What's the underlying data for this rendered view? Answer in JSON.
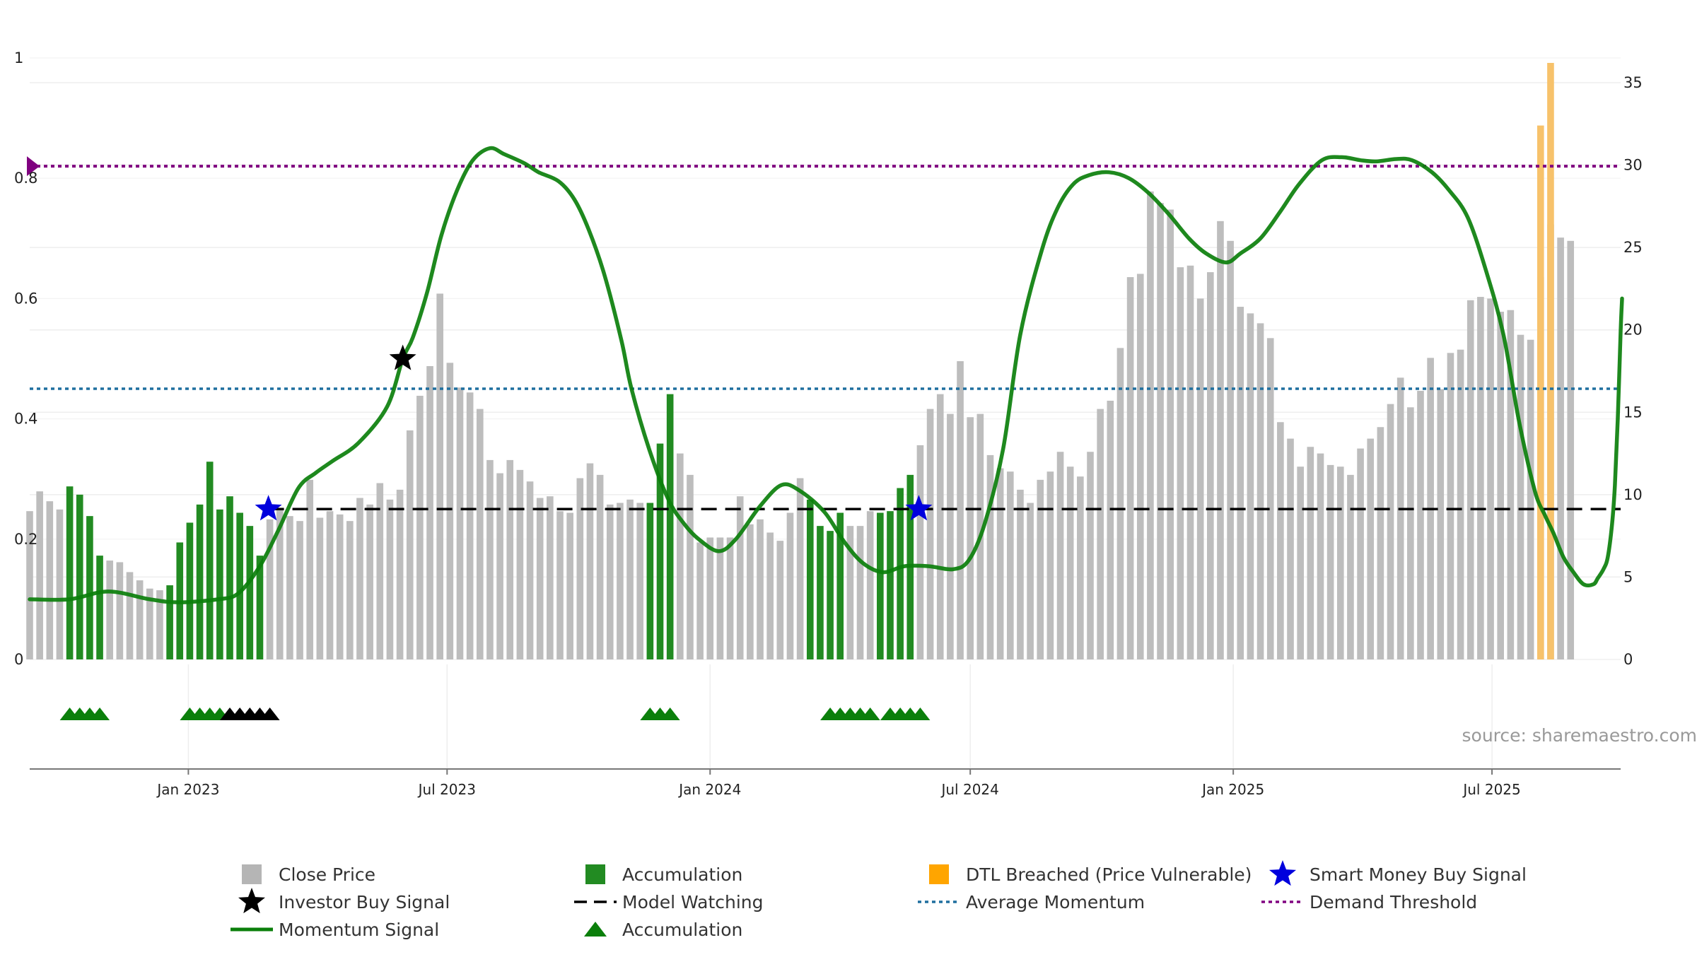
{
  "chart_data": {
    "type": "bar+line",
    "source_label": "source: sharemaestro.com",
    "left_axis": {
      "ylim": [
        0,
        1
      ],
      "ticks": [
        "0",
        "0.2",
        "0.4",
        "0.6",
        "0.8",
        "1"
      ],
      "tick_values": [
        0,
        0.2,
        0.4,
        0.6,
        0.8,
        1.0
      ]
    },
    "right_axis": {
      "ylim": [
        0,
        36.5
      ],
      "ticks": [
        "0",
        "5",
        "10",
        "15",
        "20",
        "25",
        "30",
        "35"
      ],
      "tick_values": [
        0,
        5,
        10,
        15,
        20,
        25,
        30,
        35
      ]
    },
    "x_axis": {
      "start": "2022-09-12",
      "end": "2025-09-29",
      "ticks": [
        {
          "label": "Jan 2023",
          "date": "2023-01-01"
        },
        {
          "label": "Jul 2023",
          "date": "2023-07-01"
        },
        {
          "label": "Jan 2024",
          "date": "2024-01-01"
        },
        {
          "label": "Jul 2024",
          "date": "2024-07-01"
        },
        {
          "label": "Jan 2025",
          "date": "2025-01-01"
        },
        {
          "label": "Jul 2025",
          "date": "2025-07-01"
        }
      ]
    },
    "bars_start": "2022-09-12",
    "bar_interval_days": 7,
    "close_price": [
      9,
      10.2,
      9.6,
      9.1,
      10.5,
      10,
      8.7,
      6.3,
      6,
      5.9,
      5.3,
      4.8,
      4.3,
      4.2,
      4.5,
      7.1,
      8.3,
      9.4,
      12,
      9.1,
      9.9,
      8.9,
      8.1,
      6.3,
      8.5,
      9.1,
      8.7,
      8.4,
      10.9,
      8.6,
      9,
      8.8,
      8.4,
      9.8,
      9.4,
      10.7,
      9.7,
      10.3,
      13.9,
      16,
      17.8,
      22.2,
      18,
      16.5,
      16.2,
      15.2,
      12.1,
      11.3,
      12.1,
      11.5,
      10.8,
      9.8,
      9.9,
      9,
      8.9,
      11,
      11.9,
      11.2,
      9.4,
      9.5,
      9.7,
      9.5,
      9.5,
      13.1,
      16.1,
      12.5,
      11.2,
      7.1,
      7.4,
      7.4,
      7.4,
      9.9,
      8.2,
      8.5,
      7.7,
      7.2,
      8.9,
      11,
      9.7,
      8.1,
      7.8,
      8.9,
      8.1,
      8.1,
      9,
      8.9,
      9,
      10.4,
      11.2,
      13,
      15.2,
      16.1,
      14.9,
      18.1,
      14.7,
      14.9,
      12.4,
      11.6,
      11.4,
      10.3,
      9.5,
      10.9,
      11.4,
      12.6,
      11.7,
      11.1,
      12.6,
      15.2,
      15.7,
      18.9,
      23.2,
      23.4,
      28.4,
      27.7,
      27.3,
      23.8,
      23.9,
      21.9,
      23.5,
      26.6,
      25.4,
      21.4,
      21,
      20.4,
      19.5,
      14.4,
      13.4,
      11.7,
      12.9,
      12.5,
      11.8,
      11.7,
      11.2,
      12.8,
      13.4,
      14.1,
      15.5,
      17.1,
      15.3,
      16.3,
      18.3,
      16.4,
      18.6,
      18.8,
      21.8,
      22,
      21.9,
      21.1,
      21.2,
      19.7,
      19.4,
      23.2,
      26.4,
      25.6,
      25.4
    ],
    "dtl_breached": [
      {
        "index": 151,
        "value": 32.4
      },
      {
        "index": 152,
        "value": 36.2
      }
    ],
    "accumulation_bar_indices": [
      4,
      5,
      6,
      7,
      14,
      15,
      16,
      17,
      18,
      19,
      20,
      21,
      22,
      23,
      62,
      63,
      64,
      78,
      79,
      80,
      81,
      85,
      86,
      87,
      88
    ],
    "momentum_signal": [
      [
        "2022-09-12",
        0.1
      ],
      [
        "2022-10-10",
        0.1
      ],
      [
        "2022-11-06",
        0.113
      ],
      [
        "2022-12-05",
        0.1
      ],
      [
        "2022-12-25",
        0.095
      ],
      [
        "2023-01-22",
        0.1
      ],
      [
        "2023-02-05",
        0.11
      ],
      [
        "2023-02-20",
        0.155
      ],
      [
        "2023-03-05",
        0.215
      ],
      [
        "2023-03-19",
        0.285
      ],
      [
        "2023-03-31",
        0.31
      ],
      [
        "2023-04-12",
        0.33
      ],
      [
        "2023-04-30",
        0.36
      ],
      [
        "2023-05-20",
        0.42
      ],
      [
        "2023-05-31",
        0.5
      ],
      [
        "2023-06-07",
        0.535
      ],
      [
        "2023-06-17",
        0.61
      ],
      [
        "2023-06-27",
        0.705
      ],
      [
        "2023-07-08",
        0.78
      ],
      [
        "2023-07-19",
        0.83
      ],
      [
        "2023-07-31",
        0.85
      ],
      [
        "2023-08-10",
        0.84
      ],
      [
        "2023-08-24",
        0.825
      ],
      [
        "2023-09-03",
        0.81
      ],
      [
        "2023-09-17",
        0.795
      ],
      [
        "2023-09-28",
        0.765
      ],
      [
        "2023-10-08",
        0.715
      ],
      [
        "2023-10-19",
        0.64
      ],
      [
        "2023-10-31",
        0.53
      ],
      [
        "2023-11-07",
        0.45
      ],
      [
        "2023-11-20",
        0.345
      ],
      [
        "2023-12-03",
        0.265
      ],
      [
        "2023-12-14",
        0.225
      ],
      [
        "2023-12-24",
        0.2
      ],
      [
        "2024-01-07",
        0.18
      ],
      [
        "2024-01-19",
        0.2
      ],
      [
        "2024-02-05",
        0.255
      ],
      [
        "2024-02-20",
        0.29
      ],
      [
        "2024-03-04",
        0.28
      ],
      [
        "2024-03-21",
        0.245
      ],
      [
        "2024-04-04",
        0.195
      ],
      [
        "2024-04-17",
        0.16
      ],
      [
        "2024-05-01",
        0.145
      ],
      [
        "2024-05-16",
        0.155
      ],
      [
        "2024-06-02",
        0.155
      ],
      [
        "2024-06-19",
        0.15
      ],
      [
        "2024-06-30",
        0.165
      ],
      [
        "2024-07-11",
        0.225
      ],
      [
        "2024-07-24",
        0.35
      ],
      [
        "2024-08-05",
        0.54
      ],
      [
        "2024-08-20",
        0.68
      ],
      [
        "2024-08-31",
        0.75
      ],
      [
        "2024-09-11",
        0.79
      ],
      [
        "2024-09-22",
        0.805
      ],
      [
        "2024-10-06",
        0.81
      ],
      [
        "2024-10-20",
        0.8
      ],
      [
        "2024-11-03",
        0.775
      ],
      [
        "2024-11-17",
        0.74
      ],
      [
        "2024-12-01",
        0.7
      ],
      [
        "2024-12-13",
        0.675
      ],
      [
        "2024-12-27",
        0.66
      ],
      [
        "2025-01-06",
        0.675
      ],
      [
        "2025-01-20",
        0.7
      ],
      [
        "2025-02-03",
        0.745
      ],
      [
        "2025-02-16",
        0.79
      ],
      [
        "2025-03-04",
        0.83
      ],
      [
        "2025-03-18",
        0.835
      ],
      [
        "2025-03-31",
        0.83
      ],
      [
        "2025-04-11",
        0.828
      ],
      [
        "2025-04-25",
        0.832
      ],
      [
        "2025-05-06",
        0.83
      ],
      [
        "2025-05-20",
        0.81
      ],
      [
        "2025-06-01",
        0.78
      ],
      [
        "2025-06-14",
        0.735
      ],
      [
        "2025-06-27",
        0.645
      ],
      [
        "2025-07-09",
        0.54
      ],
      [
        "2025-07-20",
        0.395
      ],
      [
        "2025-07-31",
        0.28
      ],
      [
        "2025-08-07",
        0.24
      ],
      [
        "2025-08-13",
        0.21
      ],
      [
        "2025-08-20",
        0.17
      ],
      [
        "2025-08-27",
        0.145
      ],
      [
        "2025-09-03",
        0.125
      ],
      [
        "2025-09-10",
        0.125
      ],
      [
        "2025-09-13",
        0.135
      ],
      [
        "2025-09-17",
        0.15
      ],
      [
        "2025-09-20",
        0.17
      ],
      [
        "2025-09-23",
        0.225
      ],
      [
        "2025-09-25",
        0.29
      ],
      [
        "2025-09-27",
        0.4
      ],
      [
        "2025-09-29",
        0.545
      ],
      [
        "2025-09-30",
        0.6
      ]
    ],
    "model_watching_level": 0.25,
    "model_watching_range": [
      "2023-02-26",
      "2025-09-29"
    ],
    "average_momentum_level": 0.45,
    "demand_threshold_level": 0.82,
    "smart_money_buy_signals": [
      {
        "date": "2023-02-26",
        "value": 0.25
      },
      {
        "date": "2024-05-26",
        "value": 0.25
      }
    ],
    "investor_buy_signals": [
      {
        "date": "2023-05-31",
        "value": 0.5
      }
    ],
    "accumulation_markers_green": [
      "2022-10-10",
      "2022-10-17",
      "2022-10-24",
      "2022-10-31",
      "2023-01-02",
      "2023-01-09",
      "2023-01-16",
      "2023-01-23",
      "2023-11-20",
      "2023-11-27",
      "2023-12-04",
      "2024-03-25",
      "2024-04-01",
      "2024-04-08",
      "2024-04-15",
      "2024-04-22",
      "2024-05-06",
      "2024-05-13",
      "2024-05-20",
      "2024-05-27"
    ],
    "accumulation_markers_black": [
      "2023-01-30",
      "2023-02-06",
      "2023-02-13",
      "2023-02-20",
      "2023-02-27"
    ],
    "legend": [
      {
        "label": "Close Price",
        "symbol": "square",
        "color": "#b5b5b5"
      },
      {
        "label": "Accumulation",
        "symbol": "square",
        "color": "#228b22"
      },
      {
        "label": "DTL Breached (Price Vulnerable)",
        "symbol": "square",
        "color": "#ffa500"
      },
      {
        "label": "Smart Money Buy Signal",
        "symbol": "star",
        "color": "#0000dd"
      },
      {
        "label": "Investor Buy Signal",
        "symbol": "star",
        "color": "#000000"
      },
      {
        "label": "Model Watching",
        "symbol": "dash",
        "color": "#000000"
      },
      {
        "label": "Average Momentum",
        "symbol": "dotted",
        "color": "#1f6f9f"
      },
      {
        "label": "Demand Threshold",
        "symbol": "dotted",
        "color": "#800080"
      },
      {
        "label": "Momentum Signal",
        "symbol": "line",
        "color": "#0b7f0b"
      },
      {
        "label": "Accumulation",
        "symbol": "triangle",
        "color": "#0b7f0b"
      }
    ],
    "colors": {
      "close_price": "#bdbdbd",
      "accumulation": "#228b22",
      "dtl": "#f7c26b",
      "momentum": "#0b7f0b",
      "average_momentum": "#1f6f9f",
      "demand_threshold": "#800080",
      "smart_money": "#0000dd",
      "investor": "#000000"
    }
  }
}
